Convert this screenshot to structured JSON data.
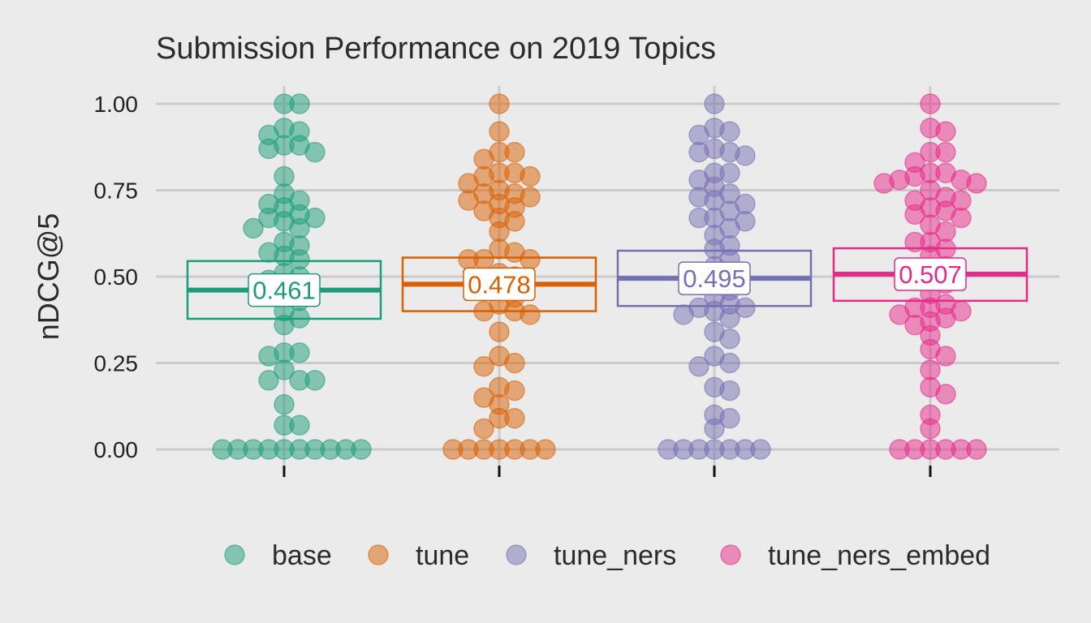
{
  "chart_data": {
    "type": "scatter",
    "title": "Submission Performance on 2019 Topics",
    "ylabel": "nDCG@5",
    "xlabel": "",
    "ylim": [
      0,
      1
    ],
    "yticks": [
      "0.00",
      "0.25",
      "0.50",
      "0.75",
      "1.00"
    ],
    "ytick_values": [
      0,
      0.25,
      0.5,
      0.75,
      1.0
    ],
    "grid": true,
    "legend_position": "bottom",
    "series": [
      {
        "name": "base",
        "color": "#1b9e77",
        "median_label": "0.461",
        "box": {
          "lower": 0.378,
          "median": 0.461,
          "upper": 0.545
        },
        "points": [
          1.0,
          1.0,
          0.93,
          0.92,
          0.91,
          0.88,
          0.88,
          0.87,
          0.86,
          0.79,
          0.74,
          0.72,
          0.71,
          0.7,
          0.68,
          0.67,
          0.67,
          0.66,
          0.64,
          0.64,
          0.6,
          0.59,
          0.57,
          0.56,
          0.55,
          0.51,
          0.5,
          0.49,
          0.45,
          0.43,
          0.4,
          0.38,
          0.36,
          0.28,
          0.28,
          0.27,
          0.23,
          0.2,
          0.2,
          0.2,
          0.13,
          0.07,
          0.07,
          0.0,
          0.0,
          0.0,
          0.0,
          0.0,
          0.0,
          0.0,
          0.0,
          0.0,
          0.0
        ]
      },
      {
        "name": "tune",
        "color": "#d95f02",
        "median_label": "0.478",
        "box": {
          "lower": 0.4,
          "median": 0.478,
          "upper": 0.555
        },
        "points": [
          1.0,
          0.92,
          0.86,
          0.86,
          0.84,
          0.8,
          0.8,
          0.79,
          0.79,
          0.77,
          0.75,
          0.74,
          0.74,
          0.73,
          0.72,
          0.71,
          0.7,
          0.69,
          0.67,
          0.66,
          0.63,
          0.58,
          0.57,
          0.55,
          0.55,
          0.55,
          0.51,
          0.5,
          0.48,
          0.46,
          0.44,
          0.42,
          0.4,
          0.4,
          0.39,
          0.34,
          0.27,
          0.25,
          0.24,
          0.18,
          0.17,
          0.15,
          0.13,
          0.09,
          0.09,
          0.06,
          0.0,
          0.0,
          0.0,
          0.0,
          0.0,
          0.0,
          0.0
        ]
      },
      {
        "name": "tune_ners",
        "color": "#7570b3",
        "median_label": "0.495",
        "box": {
          "lower": 0.415,
          "median": 0.495,
          "upper": 0.575
        },
        "points": [
          1.0,
          0.93,
          0.92,
          0.91,
          0.87,
          0.86,
          0.86,
          0.85,
          0.8,
          0.8,
          0.78,
          0.76,
          0.74,
          0.73,
          0.72,
          0.71,
          0.69,
          0.67,
          0.67,
          0.66,
          0.64,
          0.62,
          0.59,
          0.58,
          0.55,
          0.53,
          0.5,
          0.48,
          0.46,
          0.44,
          0.42,
          0.41,
          0.41,
          0.4,
          0.39,
          0.38,
          0.34,
          0.32,
          0.27,
          0.25,
          0.24,
          0.18,
          0.17,
          0.1,
          0.09,
          0.06,
          0.0,
          0.0,
          0.0,
          0.0,
          0.0,
          0.0,
          0.0
        ]
      },
      {
        "name": "tune_ners_embed",
        "color": "#e7298a",
        "median_label": "0.507",
        "box": {
          "lower": 0.43,
          "median": 0.507,
          "upper": 0.582
        },
        "points": [
          1.0,
          0.93,
          0.92,
          0.86,
          0.86,
          0.83,
          0.8,
          0.8,
          0.79,
          0.78,
          0.78,
          0.77,
          0.77,
          0.75,
          0.73,
          0.72,
          0.72,
          0.7,
          0.69,
          0.68,
          0.67,
          0.65,
          0.63,
          0.6,
          0.6,
          0.58,
          0.56,
          0.53,
          0.51,
          0.48,
          0.45,
          0.42,
          0.41,
          0.41,
          0.4,
          0.39,
          0.38,
          0.37,
          0.36,
          0.33,
          0.29,
          0.27,
          0.23,
          0.18,
          0.16,
          0.1,
          0.06,
          0.0,
          0.0,
          0.0,
          0.0,
          0.0,
          0.0
        ]
      }
    ]
  }
}
